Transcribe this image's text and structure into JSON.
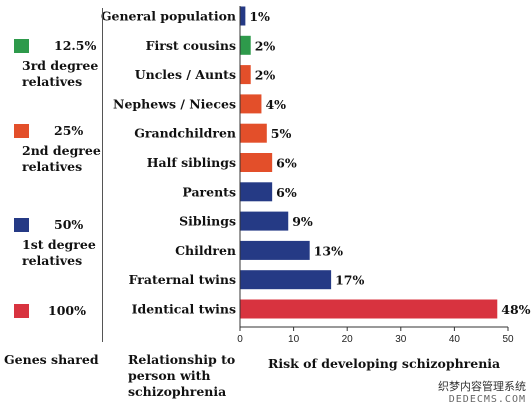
{
  "legend": {
    "groups": [
      {
        "pct": "12.5%",
        "desc": "3rd degree relatives",
        "color": "#2e9a4b"
      },
      {
        "pct": "25%",
        "desc": "2nd degree relatives",
        "color": "#e34f2a"
      },
      {
        "pct": "50%",
        "desc": "1st degree relatives",
        "color": "#253a85"
      },
      {
        "pct": "100%",
        "desc": "",
        "color": "#d8333f"
      }
    ]
  },
  "footer": {
    "genes_shared": "Genes shared",
    "relationship": "Relationship to person with schizophrenia",
    "risk": "Risk of developing schizophrenia"
  },
  "watermark": {
    "line1": "织梦内容管理系统",
    "line2": "DEDECMS.COM"
  },
  "chart_data": {
    "type": "bar",
    "orientation": "horizontal",
    "xlabel": "Risk of developing schizophrenia",
    "xlim": [
      0,
      50
    ],
    "xticks": [
      0,
      10,
      20,
      30,
      40,
      50
    ],
    "categories": [
      "General population",
      "First cousins",
      "Uncles / Aunts",
      "Nephews / Nieces",
      "Grandchildren",
      "Half siblings",
      "Parents",
      "Siblings",
      "Children",
      "Fraternal twins",
      "Identical twins"
    ],
    "values": [
      1,
      2,
      2,
      4,
      5,
      6,
      6,
      9,
      13,
      17,
      48
    ],
    "value_labels": [
      "1%",
      "2%",
      "2%",
      "4%",
      "5%",
      "6%",
      "6%",
      "9%",
      "13%",
      "17%",
      "48%"
    ],
    "colors": [
      "#253a85",
      "#2e9a4b",
      "#e34f2a",
      "#e34f2a",
      "#e34f2a",
      "#e34f2a",
      "#253a85",
      "#253a85",
      "#253a85",
      "#253a85",
      "#d8333f"
    ]
  }
}
